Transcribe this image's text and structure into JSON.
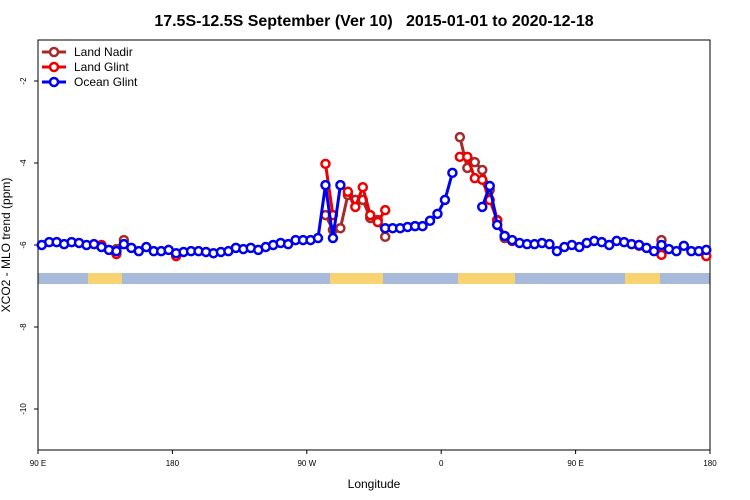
{
  "chart_data": {
    "type": "line",
    "title": "17.5S-12.5S September (Ver 10)   2015-01-01 to 2020-12-18",
    "xlabel": "Longitude",
    "ylabel": "XCO2 - MLO trend (ppm)",
    "xlim": [
      90,
      540
    ],
    "ylim": [
      -11,
      -1
    ],
    "xticks": [
      {
        "value": 90,
        "label": "90 E"
      },
      {
        "value": 180,
        "label": "180"
      },
      {
        "value": 270,
        "label": "90 W"
      },
      {
        "value": 360,
        "label": "0"
      },
      {
        "value": 450,
        "label": "90 E"
      },
      {
        "value": 540,
        "label": "180"
      }
    ],
    "yticks": [
      -10,
      -8,
      -6,
      -4,
      -2
    ],
    "legend": "top-left",
    "x": [
      92.5,
      97.5,
      102.5,
      107.5,
      112.5,
      117.5,
      122.5,
      127.5,
      132.5,
      137.5,
      142.5,
      147.5,
      152.5,
      157.5,
      162.5,
      167.5,
      172.5,
      177.5,
      182.5,
      187.5,
      192.5,
      197.5,
      202.5,
      207.5,
      212.5,
      217.5,
      222.5,
      227.5,
      232.5,
      237.5,
      242.5,
      247.5,
      252.5,
      257.5,
      262.5,
      267.5,
      272.5,
      277.5,
      282.5,
      287.5,
      292.5,
      297.5,
      302.5,
      307.5,
      312.5,
      317.5,
      322.5,
      327.5,
      332.5,
      337.5,
      342.5,
      347.5,
      352.5,
      357.5,
      362.5,
      367.5,
      372.5,
      377.5,
      382.5,
      387.5,
      392.5,
      397.5,
      402.5,
      407.5,
      412.5,
      417.5,
      422.5,
      427.5,
      432.5,
      437.5,
      442.5,
      447.5,
      452.5,
      457.5,
      462.5,
      467.5,
      472.5,
      477.5,
      482.5,
      487.5,
      492.5,
      497.5,
      502.5,
      507.5,
      512.5,
      517.5,
      522.5,
      527.5,
      532.5,
      537.5
    ],
    "series": [
      {
        "name": "Land Nadir",
        "color": "#a52a2a",
        "values": [
          null,
          null,
          null,
          null,
          null,
          null,
          null,
          null,
          null,
          null,
          -6.1,
          -5.88,
          null,
          null,
          null,
          null,
          null,
          null,
          null,
          null,
          null,
          null,
          null,
          null,
          null,
          null,
          null,
          null,
          null,
          null,
          null,
          null,
          null,
          null,
          null,
          null,
          null,
          null,
          -5.27,
          -5.63,
          -5.59,
          -4.78,
          -4.9,
          -4.9,
          -5.34,
          -5.39,
          -5.8,
          null,
          null,
          null,
          null,
          null,
          null,
          null,
          null,
          null,
          -3.37,
          -4.12,
          -3.98,
          -4.17,
          -4.66,
          -5.39,
          -5.83,
          null,
          null,
          null,
          null,
          null,
          null,
          null,
          null,
          null,
          null,
          null,
          null,
          null,
          null,
          null,
          null,
          null,
          -6.0,
          null,
          null,
          -5.88,
          null,
          null,
          null,
          null,
          null,
          null
        ]
      },
      {
        "name": "Land Glint",
        "color": "#ee0000",
        "values": [
          null,
          null,
          null,
          null,
          null,
          null,
          null,
          null,
          -6.0,
          null,
          -6.22,
          null,
          null,
          null,
          null,
          null,
          null,
          null,
          -6.27,
          null,
          null,
          null,
          null,
          null,
          null,
          null,
          null,
          null,
          null,
          null,
          null,
          null,
          null,
          null,
          null,
          null,
          null,
          null,
          -4.02,
          -5.27,
          null,
          -4.7,
          -5.07,
          -4.59,
          -5.27,
          -5.44,
          -5.15,
          null,
          null,
          null,
          null,
          null,
          null,
          null,
          null,
          null,
          -3.85,
          -3.85,
          -4.37,
          -4.41,
          -4.9,
          -5.4,
          -5.78,
          -5.9,
          null,
          null,
          null,
          null,
          null,
          null,
          null,
          null,
          null,
          null,
          null,
          null,
          null,
          null,
          null,
          null,
          -6.02,
          null,
          null,
          -6.24,
          null,
          null,
          null,
          null,
          null,
          -6.27
        ]
      },
      {
        "name": "Ocean Glint",
        "color": "#0000ee",
        "values": [
          -6.0,
          -5.93,
          -5.93,
          -5.98,
          -5.93,
          -5.95,
          -6.0,
          -5.98,
          -6.05,
          -6.12,
          -6.15,
          -5.98,
          -6.07,
          -6.15,
          -6.05,
          -6.15,
          -6.15,
          -6.12,
          -6.2,
          -6.17,
          -6.15,
          -6.15,
          -6.17,
          -6.2,
          -6.17,
          -6.15,
          -6.07,
          -6.1,
          -6.07,
          -6.12,
          -6.05,
          -6.0,
          -5.95,
          -5.98,
          -5.88,
          -5.88,
          -5.88,
          -5.83,
          -4.54,
          -5.83,
          -4.54,
          null,
          null,
          null,
          null,
          null,
          -5.59,
          -5.59,
          -5.59,
          -5.56,
          -5.54,
          -5.54,
          -5.41,
          -5.24,
          -4.9,
          -4.24,
          null,
          null,
          null,
          -5.07,
          -4.56,
          -5.51,
          -5.78,
          -5.88,
          -5.95,
          -5.98,
          -5.98,
          -5.95,
          -5.98,
          -6.15,
          -6.05,
          -6.0,
          -6.05,
          -5.95,
          -5.9,
          -5.93,
          -6.0,
          -5.9,
          -5.93,
          -5.98,
          -6.0,
          -6.07,
          -6.15,
          -6.0,
          -6.1,
          -6.15,
          -6.02,
          -6.15,
          -6.15,
          -6.12
        ]
      }
    ]
  }
}
